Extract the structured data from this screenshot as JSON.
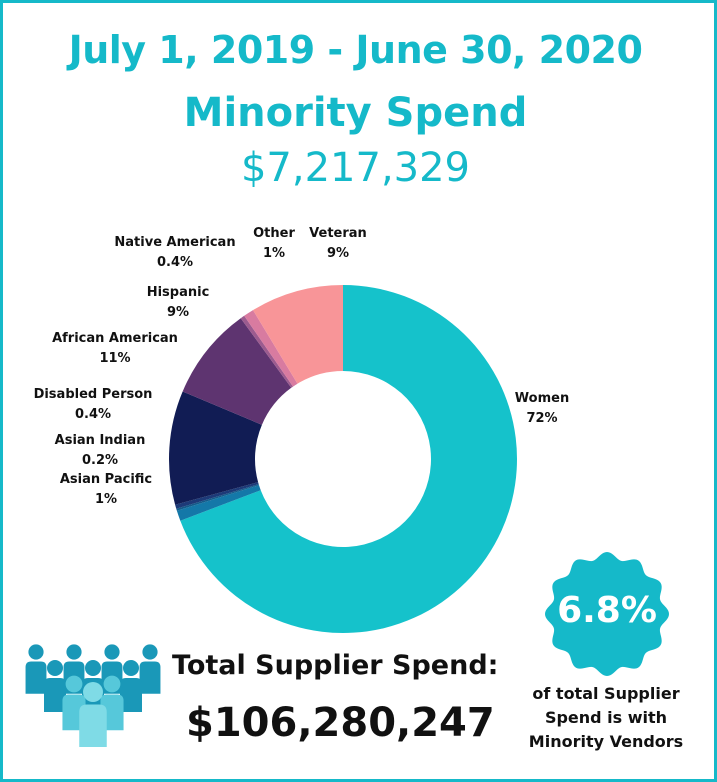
{
  "header": {
    "period": "July 1, 2019 - June 30, 2020",
    "title": "Minority Spend",
    "amount": "$7,217,329"
  },
  "chart_data": {
    "type": "pie",
    "donut": true,
    "title": "Minority Spend",
    "slices": [
      {
        "name": "Women",
        "value": 72,
        "label": "72%",
        "color": "#15c2cb"
      },
      {
        "name": "Asian Pacific",
        "value": 1,
        "label": "1%",
        "color": "#1478a8"
      },
      {
        "name": "Asian Indian",
        "value": 0.2,
        "label": "0.2%",
        "color": "#135b8a"
      },
      {
        "name": "Disabled Person",
        "value": 0.4,
        "label": "0.4%",
        "color": "#1d3a78"
      },
      {
        "name": "African American",
        "value": 11,
        "label": "11%",
        "color": "#111c54"
      },
      {
        "name": "Hispanic",
        "value": 9,
        "label": "9%",
        "color": "#5e3470"
      },
      {
        "name": "Native American",
        "value": 0.4,
        "label": "0.4%",
        "color": "#9c5b8f"
      },
      {
        "name": "Other",
        "value": 1,
        "label": "1%",
        "color": "#d87ba0"
      },
      {
        "name": "Veteran",
        "value": 9,
        "label": "9%",
        "color": "#f89598"
      }
    ]
  },
  "total": {
    "label": "Total Supplier Spend:",
    "value": "$106,280,247"
  },
  "badge": {
    "value": "6.8%",
    "caption_lines": [
      "of total Supplier",
      "Spend is with",
      "Minority Vendors"
    ],
    "color": "#15b9c9"
  },
  "colors": {
    "accent": "#15b9c9",
    "people_primary": "#1a98b8",
    "people_light": "#7fdbe6"
  },
  "icons": [
    "people-group-icon"
  ]
}
